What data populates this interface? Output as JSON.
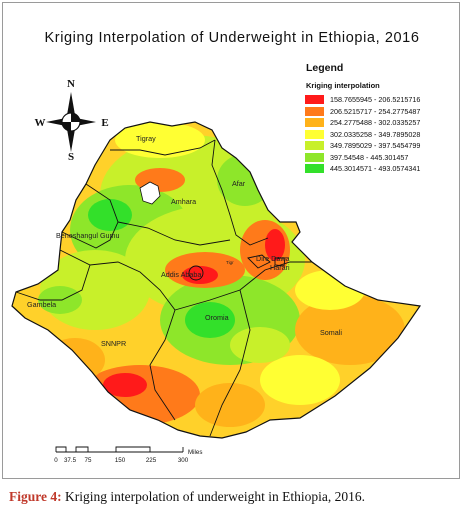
{
  "title": "Kriging Interpolation  of Underweight  in Ethiopia, 2016",
  "legend": {
    "title": "Legend",
    "subtitle": "Kriging interpolation",
    "classes": [
      {
        "label": "158.7655945 - 206.5215716",
        "color": "#ff1a1a"
      },
      {
        "label": "206.5215717 - 254.2775487",
        "color": "#ff7a1a"
      },
      {
        "label": "254.2775488 - 302.0335257",
        "color": "#ffb21a"
      },
      {
        "label": "302.0335258 - 349.7895028",
        "color": "#ffff33"
      },
      {
        "label": "349.7895029 - 397.5454799",
        "color": "#c8f02a"
      },
      {
        "label": "397.54548 - 445.301457",
        "color": "#8ee62a"
      },
      {
        "label": "445.3014571 - 493.0574341",
        "color": "#33e02a"
      }
    ]
  },
  "compass": {
    "n": "N",
    "s": "S",
    "e": "E",
    "w": "W"
  },
  "regions": {
    "tigray": "Tigray",
    "afar": "Afar",
    "amhara": "Amhara",
    "benishangul": "Beneshangul Gumu",
    "addis": "Addis Ababa",
    "diredawa": "Dire Dawa",
    "harari": "Harari",
    "gambela": "Gambela",
    "oromia": "Oromia",
    "snnpr": "SNNPR",
    "somali": "Somali",
    "tigray_small": "Tigr"
  },
  "scale": {
    "ticks": [
      "0",
      "37.5",
      "75",
      "150",
      "225",
      "300"
    ],
    "unit": "Miles"
  },
  "caption": {
    "prefix": "Figure 4:",
    "text": " Kriging interpolation of underweight in Ethiopia, 2016."
  }
}
